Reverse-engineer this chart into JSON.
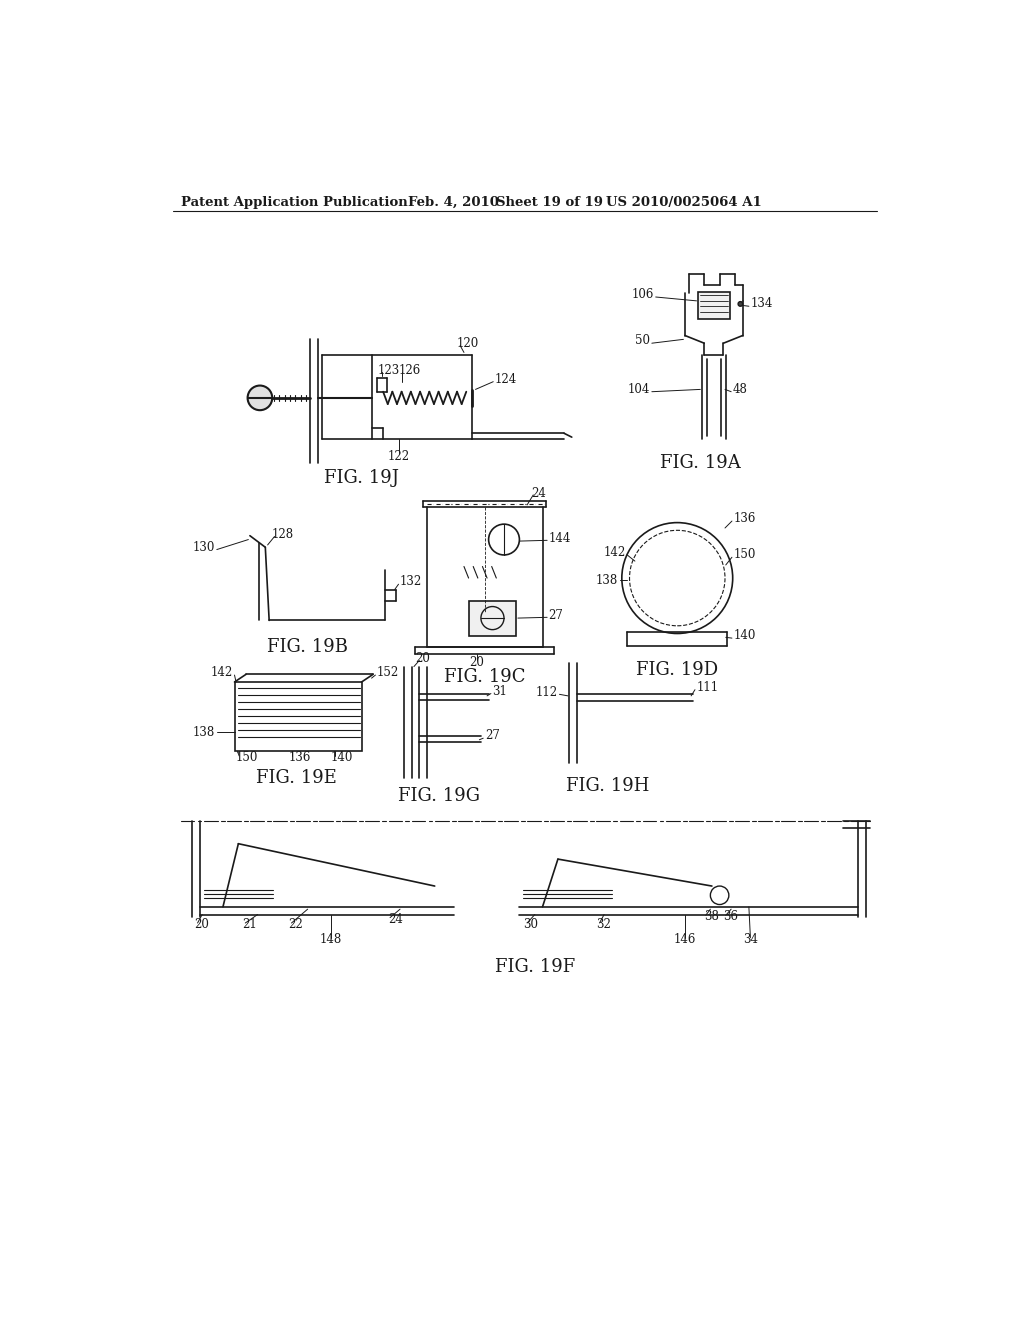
{
  "bg_color": "#ffffff",
  "header_text": "Patent Application Publication",
  "header_date": "Feb. 4, 2010",
  "header_sheet": "Sheet 19 of 19",
  "header_patent": "US 2010/0025064 A1",
  "line_color": "#1a1a1a",
  "line_width": 1.2,
  "label_fontsize": 8.5,
  "fig_label_fontsize": 13
}
